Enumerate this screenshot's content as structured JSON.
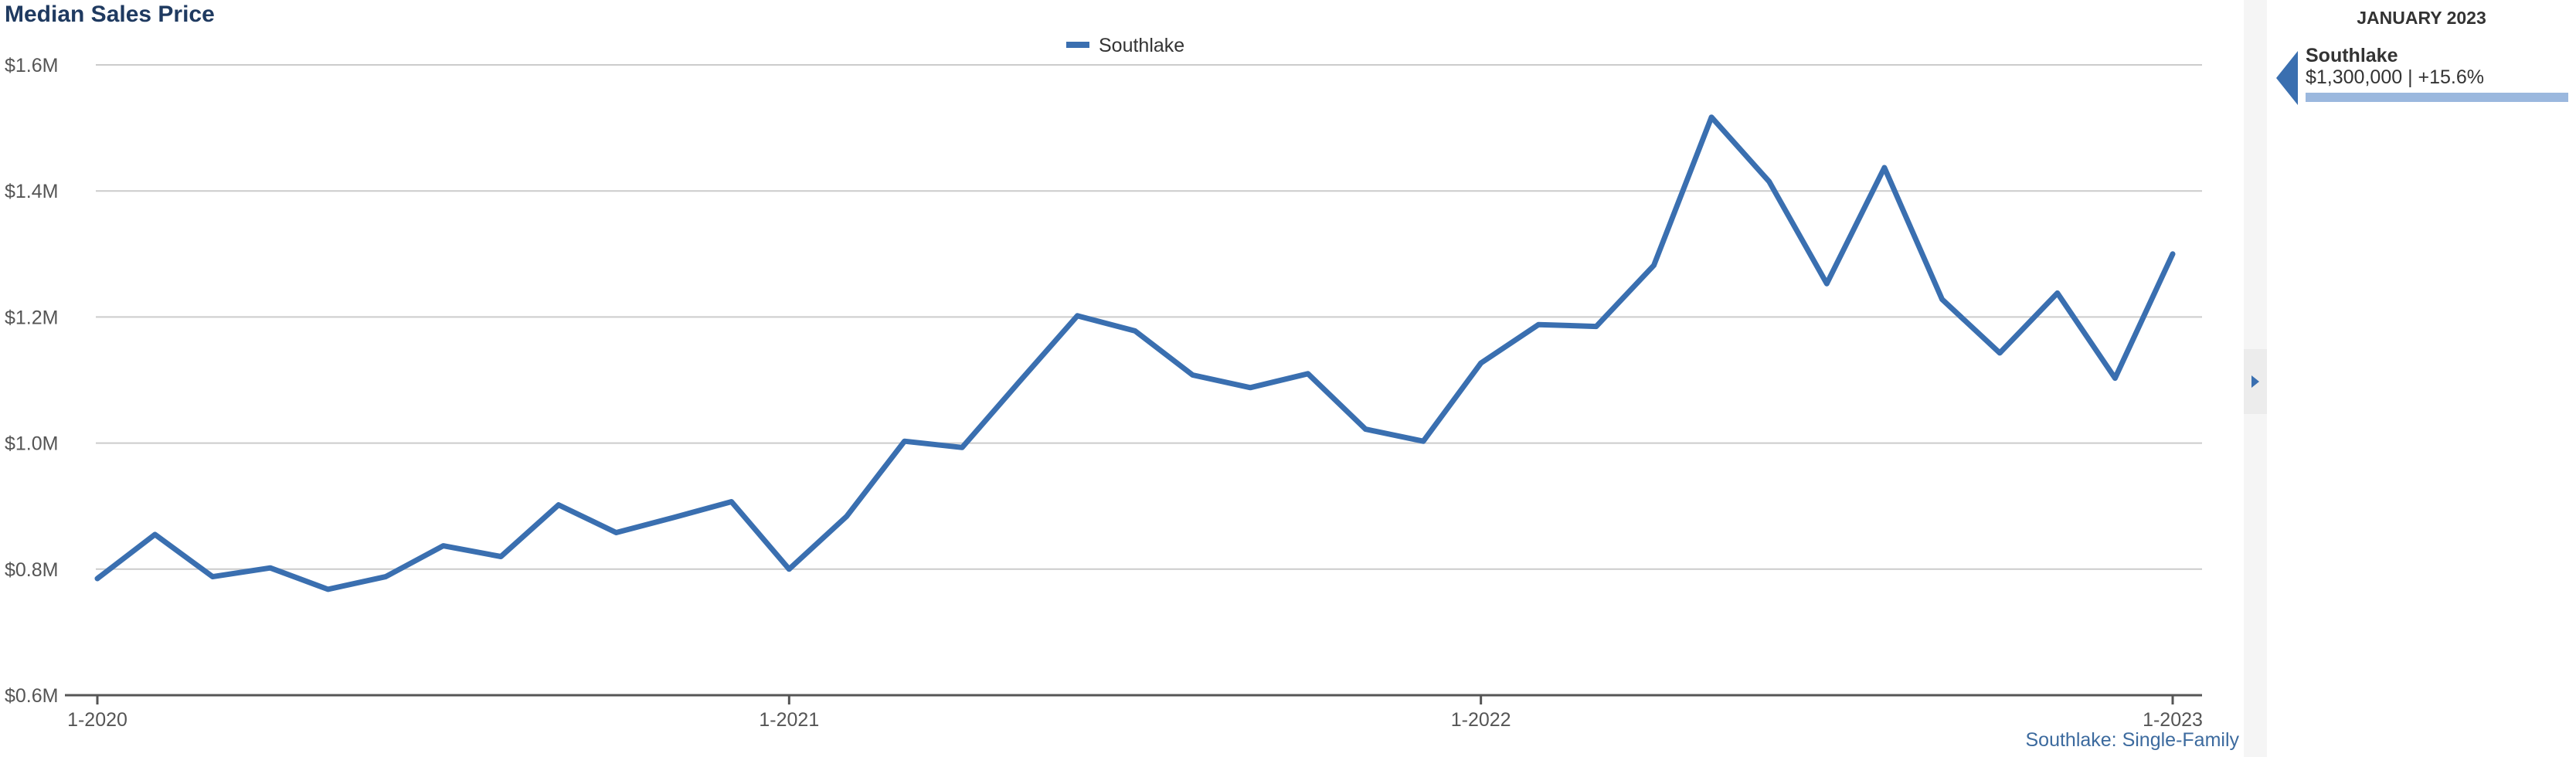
{
  "chart_data": {
    "type": "line",
    "title": "Median Sales Price",
    "x_ticks": [
      "1-2020",
      "1-2021",
      "1-2022",
      "1-2023"
    ],
    "y_ticks": [
      "$0.6M",
      "$0.8M",
      "$1.0M",
      "$1.2M",
      "$1.4M",
      "$1.6M"
    ],
    "ylim": [
      0.6,
      1.6
    ],
    "y_unit": "million USD",
    "grid": true,
    "legend_position": "top-center",
    "series": [
      {
        "name": "Southlake",
        "color": "#3a6fb0",
        "x": [
          "2020-01",
          "2020-02",
          "2020-03",
          "2020-04",
          "2020-05",
          "2020-06",
          "2020-07",
          "2020-08",
          "2020-09",
          "2020-10",
          "2020-11",
          "2020-12",
          "2021-01",
          "2021-02",
          "2021-03",
          "2021-04",
          "2021-05",
          "2021-06",
          "2021-07",
          "2021-08",
          "2021-09",
          "2021-10",
          "2021-11",
          "2021-12",
          "2022-01",
          "2022-02",
          "2022-03",
          "2022-04",
          "2022-05",
          "2022-06",
          "2022-07",
          "2022-08",
          "2022-09",
          "2022-10",
          "2022-11",
          "2022-12",
          "2023-01"
        ],
        "values": [
          0.785,
          0.855,
          0.788,
          0.802,
          0.768,
          0.788,
          0.837,
          0.82,
          0.902,
          0.858,
          0.882,
          0.907,
          0.8,
          0.884,
          1.003,
          0.993,
          1.098,
          1.202,
          1.178,
          1.108,
          1.088,
          1.11,
          1.022,
          1.003,
          1.127,
          1.188,
          1.185,
          1.282,
          1.517,
          1.415,
          1.253,
          1.437,
          1.228,
          1.143,
          1.238,
          1.103,
          1.3
        ]
      }
    ]
  },
  "legend": {
    "label": "Southlake",
    "color": "#3a6fb0"
  },
  "credit": "Southlake: Single-Family",
  "side_panel": {
    "heading": "JANUARY 2023",
    "series_name": "Southlake",
    "value_text": "$1,300,000 | +15.6%",
    "bar_color": "#9bb8de"
  },
  "colors": {
    "line": "#3a6fb0",
    "title": "#1f3a60",
    "credit": "#3c6a9e",
    "grid": "#cccccc"
  }
}
